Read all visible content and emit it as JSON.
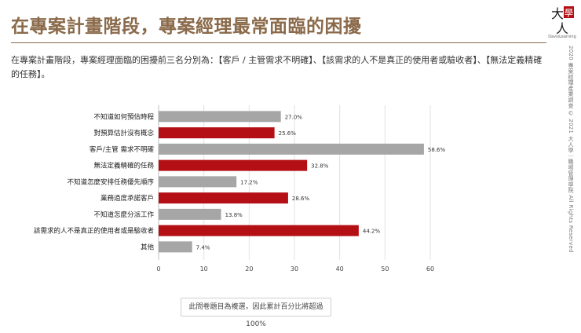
{
  "header": {
    "title": "在專案計畫階段，專案經理最常面臨的困擾",
    "logo_text": "DavisLearning"
  },
  "intro": {
    "text": "在專案計畫階段，專案經理面臨的困擾前三名分別為：【客戶 / 主管需求不明確】、【該需求的人不是真正的使用者或驗收者】、【無法定義精確的任務】。"
  },
  "side_credit": "2020 專案經理產業調查 © 2021 大人學｜職場管理學院 All Rights Reserved",
  "footnote": "此問卷題目為複選，因此累計百分比將超過 100%",
  "colors": {
    "title": "#8a6a4a",
    "highlight": "#b30f14",
    "normal": "#a6a6a6"
  },
  "chart_data": {
    "type": "bar",
    "orientation": "horizontal",
    "categories": [
      "不知道如何預估時程",
      "對預算估計沒有概念",
      "客戶/主管 需求不明確",
      "無法定義精確的任務",
      "不知道怎麼安排任務優先順序",
      "業務過度承諾客戶",
      "不知道怎麼分派工作",
      "該需求的人不是真正的使用者或是驗收者",
      "其他"
    ],
    "values": [
      27.0,
      25.6,
      58.6,
      32.8,
      17.2,
      28.6,
      13.8,
      44.2,
      7.4
    ],
    "value_labels": [
      "27.0%",
      "25.6%",
      "58.6%",
      "32.8%",
      "17.2%",
      "28.6%",
      "13.8%",
      "44.2%",
      "7.4%"
    ],
    "highlighted": [
      false,
      true,
      false,
      true,
      false,
      true,
      false,
      true,
      false
    ],
    "xlim": [
      0,
      60
    ],
    "xticks": [
      0,
      10,
      20,
      30,
      40,
      50,
      60
    ],
    "grid": true
  }
}
